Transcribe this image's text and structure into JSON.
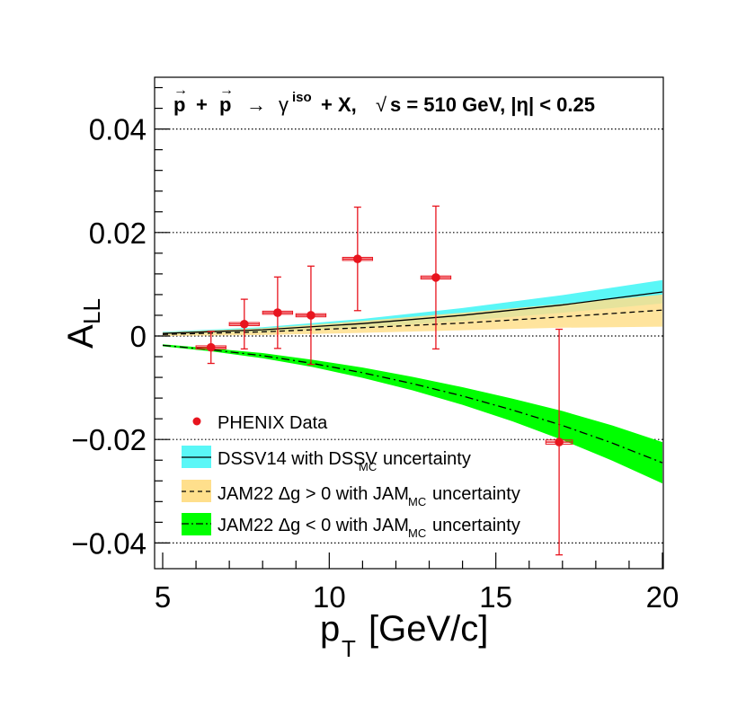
{
  "chart_data": {
    "type": "scatter",
    "title": "p + p → γiso + X, √s = 510 GeV, |η| < 0.25",
    "title_parts": {
      "p1": "p",
      "plus1": "+",
      "p2": "p",
      "arrow": "→",
      "gamma": "γ",
      "iso": "iso",
      "rest1": "+ X,",
      "sqrt": "√",
      "rest2": "s = 510 GeV, |η| < 0.25"
    },
    "xlabel": "p",
    "xlabel_sub": "T",
    "xlabel_rest": "[GeV/c]",
    "ylabel": "A",
    "ylabel_sub": "LL",
    "xlim": [
      5,
      20
    ],
    "ylim": [
      -0.044,
      0.05
    ],
    "x_ticks": [
      5,
      10,
      15,
      20
    ],
    "x_tick_labels": [
      "5",
      "10",
      "15",
      "20"
    ],
    "y_ticks": [
      -0.04,
      -0.02,
      0,
      0.02,
      0.04
    ],
    "y_tick_labels": [
      "−0.04",
      "−0.02",
      "0",
      "0.02",
      "0.04"
    ],
    "gridlines_y": [
      -0.04,
      -0.02,
      0,
      0.02,
      0.04
    ],
    "data": {
      "name": "PHENIX Data",
      "color": "#e8141e",
      "points": [
        {
          "x": 6.45,
          "y": -0.0022,
          "err": 0.0031,
          "xerr": 0.45,
          "syst": 0.0003
        },
        {
          "x": 7.45,
          "y": 0.0023,
          "err": 0.0048,
          "xerr": 0.45,
          "syst": 0.0003
        },
        {
          "x": 8.45,
          "y": 0.0045,
          "err": 0.0069,
          "xerr": 0.45,
          "syst": 0.0003
        },
        {
          "x": 9.45,
          "y": 0.004,
          "err": 0.0095,
          "xerr": 0.45,
          "syst": 0.0003
        },
        {
          "x": 10.85,
          "y": 0.0149,
          "err": 0.01,
          "xerr": 0.45,
          "syst": 0.0003
        },
        {
          "x": 13.2,
          "y": 0.0113,
          "err": 0.0138,
          "xerr": 0.45,
          "syst": 0.0003
        },
        {
          "x": 16.9,
          "y": -0.0205,
          "err": 0.0218,
          "xerr": 0.4,
          "syst": 0.0004
        }
      ]
    },
    "series": [
      {
        "name": "DSSV14 with DSSV",
        "name_sub": "MC",
        "name_rest": "uncertainty",
        "band_color": "#5af7f7",
        "line_color": "#000000",
        "line_style": "solid",
        "x": [
          5,
          8,
          11,
          14,
          17,
          20
        ],
        "central": [
          0.0005,
          0.0012,
          0.0024,
          0.004,
          0.006,
          0.0085
        ],
        "lower": [
          0.0002,
          0.0007,
          0.0016,
          0.0029,
          0.0045,
          0.0063
        ],
        "upper": [
          0.0008,
          0.0017,
          0.0033,
          0.0054,
          0.0079,
          0.0108
        ]
      },
      {
        "name": "JAM22 Δg > 0 with JAM",
        "name_sub": "MC",
        "name_rest": "uncertainty",
        "band_color": "#ffdf8c",
        "line_color": "#000000",
        "line_style": "dashed",
        "x": [
          5,
          8,
          11,
          14,
          17,
          20
        ],
        "central": [
          0.0003,
          0.0008,
          0.0016,
          0.0025,
          0.0037,
          0.005
        ],
        "lower": [
          0.0,
          0.0002,
          0.0006,
          0.0011,
          0.0016,
          0.0018
        ],
        "upper": [
          0.0007,
          0.0015,
          0.0029,
          0.0045,
          0.0062,
          0.008
        ]
      },
      {
        "name": "JAM22 Δg < 0 with JAM",
        "name_sub": "MC",
        "name_rest": "uncertainty",
        "band_color": "#00ff00",
        "line_color": "#000000",
        "line_style": "dashdot",
        "x": [
          5,
          6.5,
          8,
          9.5,
          11,
          12.5,
          14,
          15.5,
          17,
          18.5,
          20
        ],
        "central": [
          -0.0018,
          -0.0027,
          -0.0038,
          -0.0053,
          -0.0071,
          -0.0092,
          -0.0116,
          -0.0143,
          -0.0173,
          -0.0207,
          -0.0245
        ],
        "lower": [
          -0.002,
          -0.003,
          -0.0043,
          -0.006,
          -0.0081,
          -0.0105,
          -0.0133,
          -0.0165,
          -0.0201,
          -0.0241,
          -0.0285
        ],
        "upper": [
          -0.0016,
          -0.0024,
          -0.0033,
          -0.0046,
          -0.0061,
          -0.0079,
          -0.0099,
          -0.0121,
          -0.0145,
          -0.0173,
          -0.0205
        ]
      }
    ],
    "legend": {
      "placement": "bottom-left",
      "data_label": "PHENIX Data"
    }
  }
}
